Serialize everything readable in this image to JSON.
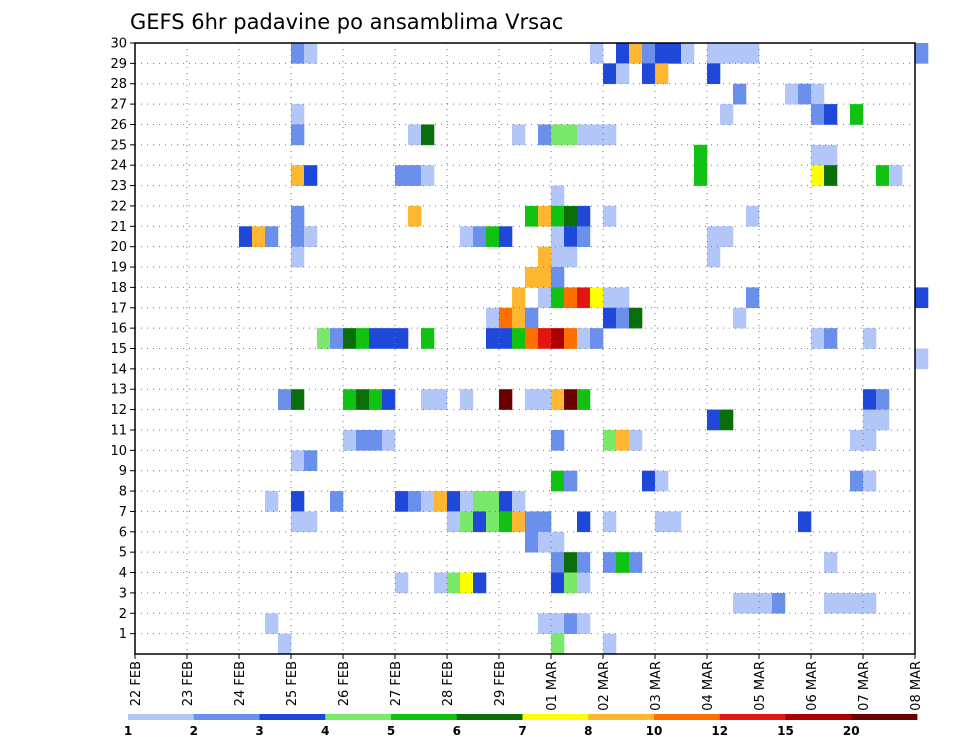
{
  "chart_data": {
    "type": "heatmap",
    "title": "GEFS 6hr padavine po ansamblima Vrsac",
    "xlabel": "",
    "ylabel": "",
    "x_ticks": [
      "22 FEB",
      "23 FEB",
      "24 FEB",
      "25 FEB",
      "26 FEB",
      "27 FEB",
      "28 FEB",
      "29 FEB",
      "01 MAR",
      "02 MAR",
      "03 MAR",
      "04 MAR",
      "05 MAR",
      "06 MAR",
      "07 MAR",
      "08 MAR"
    ],
    "xlim_days": [
      0,
      15
    ],
    "y_ticks": [
      1,
      2,
      3,
      4,
      5,
      6,
      7,
      8,
      9,
      10,
      11,
      12,
      13,
      14,
      15,
      16,
      17,
      18,
      19,
      20,
      21,
      22,
      23,
      24,
      25,
      26,
      27,
      28,
      29,
      30
    ],
    "ylim": [
      0,
      30
    ],
    "grid": true,
    "colorbar": {
      "position": "bottom",
      "levels": [
        1,
        2,
        3,
        4,
        5,
        6,
        7,
        8,
        10,
        12,
        15,
        20
      ],
      "labels": [
        "1",
        "2",
        "3",
        "4",
        "5",
        "6",
        "7",
        "8",
        "10",
        "12",
        "15",
        "20"
      ],
      "colors": [
        "#b3c6f8",
        "#6a90ec",
        "#1f48d9",
        "#7ae86a",
        "#12c212",
        "#0a6e0a",
        "#ffff00",
        "#ffb732",
        "#ff6f00",
        "#e1160e",
        "#aa0000",
        "#6b0000"
      ]
    },
    "cells": [
      [
        3.0,
        29,
        1
      ],
      [
        3.25,
        29,
        0
      ],
      [
        8.75,
        29,
        0
      ],
      [
        9.25,
        29,
        2
      ],
      [
        9.5,
        29,
        7
      ],
      [
        9.75,
        29,
        1
      ],
      [
        10.0,
        29,
        2
      ],
      [
        10.25,
        29,
        2
      ],
      [
        10.5,
        29,
        0
      ],
      [
        11.0,
        29,
        0
      ],
      [
        11.25,
        29,
        0
      ],
      [
        11.5,
        29,
        0
      ],
      [
        11.75,
        29,
        0
      ],
      [
        15.0,
        29,
        1
      ],
      [
        9.0,
        28,
        2
      ],
      [
        9.25,
        28,
        0
      ],
      [
        9.75,
        28,
        2
      ],
      [
        10.0,
        28,
        7
      ],
      [
        11.0,
        28,
        2
      ],
      [
        11.5,
        27,
        1
      ],
      [
        12.5,
        27,
        0
      ],
      [
        12.75,
        27,
        1
      ],
      [
        13.0,
        27,
        0
      ],
      [
        3.0,
        26,
        0
      ],
      [
        11.25,
        26,
        0
      ],
      [
        13.0,
        26,
        1
      ],
      [
        13.25,
        26,
        2
      ],
      [
        13.75,
        26,
        4
      ],
      [
        3.0,
        25,
        1
      ],
      [
        5.25,
        25,
        0
      ],
      [
        5.5,
        25,
        5
      ],
      [
        7.25,
        25,
        0
      ],
      [
        7.75,
        25,
        1
      ],
      [
        8.0,
        25,
        3
      ],
      [
        8.25,
        25,
        3
      ],
      [
        8.5,
        25,
        0
      ],
      [
        8.75,
        25,
        0
      ],
      [
        9.0,
        25,
        0
      ],
      [
        10.75,
        24,
        4
      ],
      [
        13.0,
        24,
        0
      ],
      [
        13.25,
        24,
        0
      ],
      [
        3.0,
        23,
        7
      ],
      [
        3.25,
        23,
        2
      ],
      [
        5.0,
        23,
        1
      ],
      [
        5.25,
        23,
        1
      ],
      [
        5.5,
        23,
        0
      ],
      [
        10.75,
        23,
        4
      ],
      [
        13.0,
        23,
        6
      ],
      [
        13.25,
        23,
        5
      ],
      [
        14.25,
        23,
        4
      ],
      [
        14.5,
        23,
        0
      ],
      [
        8.0,
        22,
        0
      ],
      [
        3.0,
        21,
        1
      ],
      [
        5.25,
        21,
        7
      ],
      [
        7.5,
        21,
        4
      ],
      [
        7.75,
        21,
        7
      ],
      [
        8.0,
        21,
        4
      ],
      [
        8.25,
        21,
        5
      ],
      [
        8.5,
        21,
        2
      ],
      [
        9.0,
        21,
        0
      ],
      [
        11.75,
        21,
        0
      ],
      [
        2.0,
        20,
        2
      ],
      [
        2.25,
        20,
        7
      ],
      [
        2.5,
        20,
        1
      ],
      [
        3.0,
        20,
        1
      ],
      [
        3.25,
        20,
        0
      ],
      [
        6.25,
        20,
        0
      ],
      [
        6.5,
        20,
        1
      ],
      [
        6.75,
        20,
        4
      ],
      [
        7.0,
        20,
        2
      ],
      [
        8.0,
        20,
        0
      ],
      [
        8.25,
        20,
        2
      ],
      [
        8.5,
        20,
        1
      ],
      [
        11.0,
        20,
        0
      ],
      [
        11.25,
        20,
        0
      ],
      [
        3.0,
        19,
        0
      ],
      [
        7.75,
        19,
        7
      ],
      [
        8.0,
        19,
        0
      ],
      [
        8.25,
        19,
        0
      ],
      [
        11.0,
        19,
        0
      ],
      [
        7.5,
        18,
        7
      ],
      [
        7.75,
        18,
        7
      ],
      [
        8.0,
        18,
        1
      ],
      [
        7.25,
        17,
        7
      ],
      [
        7.75,
        17,
        0
      ],
      [
        8.0,
        17,
        4
      ],
      [
        8.25,
        17,
        8
      ],
      [
        8.5,
        17,
        9
      ],
      [
        8.75,
        17,
        6
      ],
      [
        9.0,
        17,
        0
      ],
      [
        9.25,
        17,
        0
      ],
      [
        11.75,
        17,
        1
      ],
      [
        15.0,
        17,
        2
      ],
      [
        6.75,
        16,
        0
      ],
      [
        7.0,
        16,
        8
      ],
      [
        7.25,
        16,
        7
      ],
      [
        7.5,
        16,
        1
      ],
      [
        9.0,
        16,
        2
      ],
      [
        9.25,
        16,
        1
      ],
      [
        9.5,
        16,
        5
      ],
      [
        11.5,
        16,
        0
      ],
      [
        3.5,
        15,
        3
      ],
      [
        3.75,
        15,
        1
      ],
      [
        4.0,
        15,
        5
      ],
      [
        4.25,
        15,
        4
      ],
      [
        4.5,
        15,
        2
      ],
      [
        4.75,
        15,
        2
      ],
      [
        5.0,
        15,
        2
      ],
      [
        5.5,
        15,
        4
      ],
      [
        6.75,
        15,
        2
      ],
      [
        7.0,
        15,
        2
      ],
      [
        7.25,
        15,
        4
      ],
      [
        7.5,
        15,
        8
      ],
      [
        7.75,
        15,
        9
      ],
      [
        8.0,
        15,
        10
      ],
      [
        8.25,
        15,
        8
      ],
      [
        8.5,
        15,
        0
      ],
      [
        8.75,
        15,
        1
      ],
      [
        13.0,
        15,
        0
      ],
      [
        13.25,
        15,
        1
      ],
      [
        14.0,
        15,
        0
      ],
      [
        15.0,
        14,
        0
      ],
      [
        2.75,
        12,
        1
      ],
      [
        3.0,
        12,
        5
      ],
      [
        4.0,
        12,
        4
      ],
      [
        4.25,
        12,
        5
      ],
      [
        4.5,
        12,
        4
      ],
      [
        4.75,
        12,
        2
      ],
      [
        5.5,
        12,
        0
      ],
      [
        5.75,
        12,
        0
      ],
      [
        6.25,
        12,
        0
      ],
      [
        7.0,
        12,
        11
      ],
      [
        7.5,
        12,
        0
      ],
      [
        7.75,
        12,
        0
      ],
      [
        8.0,
        12,
        7
      ],
      [
        8.25,
        12,
        11
      ],
      [
        8.5,
        12,
        4
      ],
      [
        14.0,
        12,
        2
      ],
      [
        14.25,
        12,
        1
      ],
      [
        11.0,
        11,
        2
      ],
      [
        11.25,
        11,
        5
      ],
      [
        14.0,
        11,
        0
      ],
      [
        14.25,
        11,
        0
      ],
      [
        4.0,
        10,
        0
      ],
      [
        4.25,
        10,
        1
      ],
      [
        4.5,
        10,
        1
      ],
      [
        4.75,
        10,
        0
      ],
      [
        8.0,
        10,
        1
      ],
      [
        9.0,
        10,
        3
      ],
      [
        9.25,
        10,
        7
      ],
      [
        9.5,
        10,
        0
      ],
      [
        13.75,
        10,
        0
      ],
      [
        14.0,
        10,
        0
      ],
      [
        3.0,
        9,
        0
      ],
      [
        3.25,
        9,
        1
      ],
      [
        8.0,
        8,
        4
      ],
      [
        8.25,
        8,
        1
      ],
      [
        9.75,
        8,
        2
      ],
      [
        10.0,
        8,
        0
      ],
      [
        13.75,
        8,
        1
      ],
      [
        14.0,
        8,
        0
      ],
      [
        2.5,
        7,
        0
      ],
      [
        3.0,
        7,
        2
      ],
      [
        3.75,
        7,
        1
      ],
      [
        5.0,
        7,
        2
      ],
      [
        5.25,
        7,
        1
      ],
      [
        5.5,
        7,
        0
      ],
      [
        5.75,
        7,
        7
      ],
      [
        6.0,
        7,
        2
      ],
      [
        6.25,
        7,
        0
      ],
      [
        6.5,
        7,
        3
      ],
      [
        6.75,
        7,
        3
      ],
      [
        7.0,
        7,
        2
      ],
      [
        7.25,
        7,
        0
      ],
      [
        3.0,
        6,
        0
      ],
      [
        3.25,
        6,
        0
      ],
      [
        6.0,
        6,
        0
      ],
      [
        6.25,
        6,
        3
      ],
      [
        6.5,
        6,
        2
      ],
      [
        6.75,
        6,
        3
      ],
      [
        7.0,
        6,
        4
      ],
      [
        7.25,
        6,
        7
      ],
      [
        7.5,
        6,
        1
      ],
      [
        7.75,
        6,
        1
      ],
      [
        8.5,
        6,
        2
      ],
      [
        9.0,
        6,
        0
      ],
      [
        10.0,
        6,
        0
      ],
      [
        10.25,
        6,
        0
      ],
      [
        12.75,
        6,
        2
      ],
      [
        7.5,
        5,
        1
      ],
      [
        7.75,
        5,
        0
      ],
      [
        8.0,
        5,
        0
      ],
      [
        8.0,
        4,
        1
      ],
      [
        8.25,
        4,
        5
      ],
      [
        8.5,
        4,
        1
      ],
      [
        9.0,
        4,
        1
      ],
      [
        9.25,
        4,
        4
      ],
      [
        9.5,
        4,
        1
      ],
      [
        13.25,
        4,
        0
      ],
      [
        5.0,
        3,
        0
      ],
      [
        5.75,
        3,
        0
      ],
      [
        6.0,
        3,
        3
      ],
      [
        6.25,
        3,
        6
      ],
      [
        6.5,
        3,
        2
      ],
      [
        8.0,
        3,
        2
      ],
      [
        8.25,
        3,
        3
      ],
      [
        8.5,
        3,
        0
      ],
      [
        11.5,
        2,
        0
      ],
      [
        11.75,
        2,
        0
      ],
      [
        12.0,
        2,
        0
      ],
      [
        12.25,
        2,
        1
      ],
      [
        13.25,
        2,
        0
      ],
      [
        13.5,
        2,
        0
      ],
      [
        13.75,
        2,
        0
      ],
      [
        14.0,
        2,
        0
      ],
      [
        2.5,
        1,
        0
      ],
      [
        7.75,
        1,
        0
      ],
      [
        8.0,
        1,
        0
      ],
      [
        8.25,
        1,
        1
      ],
      [
        8.5,
        1,
        0
      ],
      [
        2.75,
        0,
        0
      ],
      [
        8.0,
        0,
        3
      ],
      [
        9.0,
        0,
        0
      ]
    ]
  }
}
